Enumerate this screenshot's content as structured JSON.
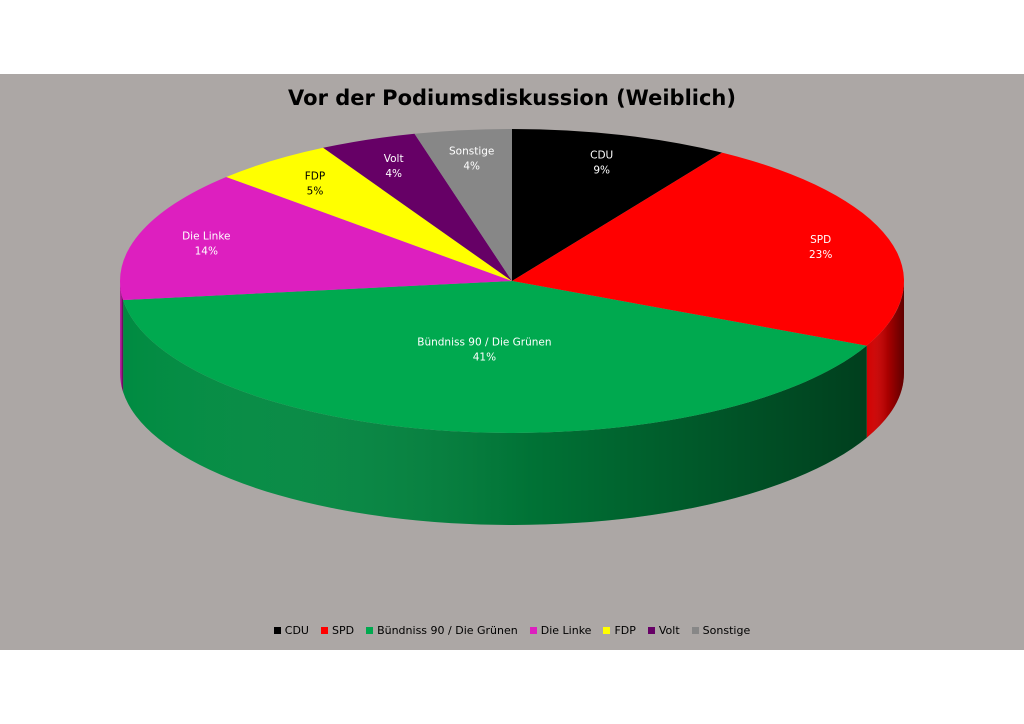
{
  "chart_data": {
    "type": "pie",
    "title": "Vor der Podiumsdiskussion (Weiblich)",
    "categories": [
      "CDU",
      "SPD",
      "Bündniss 90 / Die Grünen",
      "Die Linke",
      "FDP",
      "Volt",
      "Sonstige"
    ],
    "values": [
      9,
      23,
      41,
      14,
      5,
      4,
      4
    ],
    "labels": [
      "9%",
      "23%",
      "41%",
      "14%",
      "5%",
      "4%",
      "4%"
    ],
    "colors": [
      "#000000",
      "#ff0000",
      "#00a94f",
      "#dd1fbf",
      "#ffff00",
      "#660066",
      "#878787"
    ],
    "label_colors": [
      "#ffffff",
      "#ffffff",
      "#ffffff",
      "#ffffff",
      "#000000",
      "#ffffff",
      "#ffffff"
    ],
    "legend_position": "bottom",
    "style": "3d-pie"
  }
}
